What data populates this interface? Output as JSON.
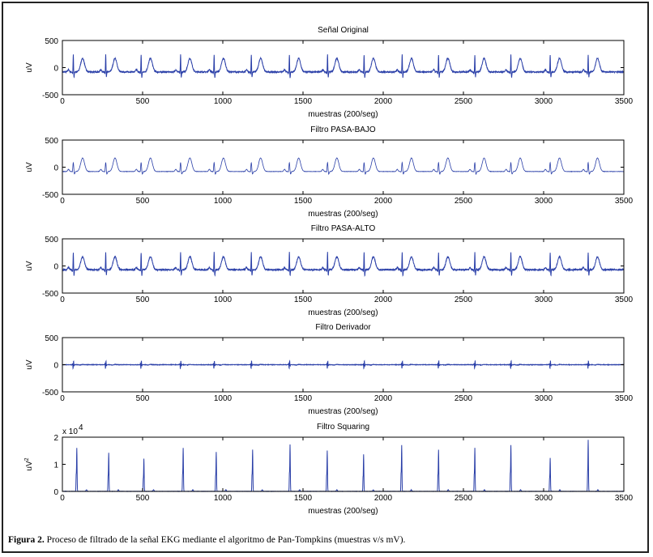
{
  "figure": {
    "caption_label": "Figura 2.",
    "caption_text": " Proceso de filtrado de la señal EKG mediante el algoritmo de Pan-Tompkins (muestras v/s mV)."
  },
  "colors": {
    "trace": "#2a3fa8",
    "axes": "#000000"
  },
  "chart_data": [
    {
      "type": "line",
      "title": "Señal Original",
      "xlabel": "muestras (200/seg)",
      "ylabel": "uV",
      "xlim": [
        0,
        3500
      ],
      "ylim": [
        -500,
        500
      ],
      "xticks": [
        0,
        500,
        1000,
        1500,
        2000,
        2500,
        3000,
        3500
      ],
      "yticks": [
        -500,
        0,
        500
      ],
      "signal": "original",
      "r_peaks": [
        68,
        270,
        491,
        737,
        946,
        1178,
        1415,
        1653,
        1881,
        2118,
        2345,
        2571,
        2796,
        3041,
        3278
      ],
      "baseline": -80,
      "r_peak_value": 250,
      "t_wave_value": 170
    },
    {
      "type": "line",
      "title": "Filtro PASA-BAJO",
      "xlabel": "muestras (200/seg)",
      "ylabel": "uV",
      "xlim": [
        0,
        3500
      ],
      "ylim": [
        -500,
        500
      ],
      "xticks": [
        0,
        500,
        1000,
        1500,
        2000,
        2500,
        3000,
        3500
      ],
      "yticks": [
        -500,
        0,
        500
      ],
      "signal": "lowpass",
      "r_peaks": [
        68,
        270,
        491,
        737,
        946,
        1178,
        1415,
        1653,
        1881,
        2118,
        2345,
        2571,
        2796,
        3041,
        3278
      ],
      "baseline": -80,
      "r_peak_value": 100,
      "t_wave_value": 170
    },
    {
      "type": "line",
      "title": "Filtro PASA-ALTO",
      "xlabel": "muestras (200/seg)",
      "ylabel": "uV",
      "xlim": [
        0,
        3500
      ],
      "ylim": [
        -500,
        500
      ],
      "xticks": [
        0,
        500,
        1000,
        1500,
        2000,
        2500,
        3000,
        3500
      ],
      "yticks": [
        -500,
        0,
        500
      ],
      "signal": "highpass",
      "r_peaks": [
        68,
        270,
        491,
        737,
        946,
        1178,
        1415,
        1653,
        1881,
        2118,
        2345,
        2571,
        2796,
        3041,
        3278
      ],
      "baseline": -70,
      "r_peak_value": 250,
      "t_wave_value": 160
    },
    {
      "type": "line",
      "title": "Filtro Derivador",
      "xlabel": "muestras (200/seg)",
      "ylabel": "uV",
      "xlim": [
        0,
        3500
      ],
      "ylim": [
        -500,
        500
      ],
      "xticks": [
        0,
        500,
        1000,
        1500,
        2000,
        2500,
        3000,
        3500
      ],
      "yticks": [
        -500,
        0,
        500
      ],
      "signal": "derivative",
      "r_peaks": [
        68,
        270,
        491,
        737,
        946,
        1178,
        1415,
        1653,
        1881,
        2118,
        2345,
        2571,
        2796,
        3041,
        3278
      ],
      "baseline": 0,
      "r_peak_value": 60,
      "t_wave_value": 10
    },
    {
      "type": "line",
      "title": "Filtro Squaring",
      "xlabel": "muestras (200/seg)",
      "ylabel": "uV",
      "ylabel_sup": "2",
      "xlim": [
        0,
        3500
      ],
      "ylim": [
        0,
        20000
      ],
      "xticks": [
        0,
        500,
        1000,
        1500,
        2000,
        2500,
        3000,
        3500
      ],
      "yticks": [
        0,
        1,
        2
      ],
      "ytick_scale": "x 10",
      "ytick_scale_exp": "4",
      "signal": "squaring",
      "r_peaks": [
        90,
        289,
        508,
        753,
        959,
        1186,
        1419,
        1651,
        1878,
        2115,
        2345,
        2571,
        2796,
        3041,
        3278
      ],
      "peak_values": [
        16000,
        14200,
        12000,
        16000,
        14500,
        15300,
        17300,
        15000,
        13600,
        17000,
        15300,
        16000,
        17000,
        12300,
        19000
      ]
    }
  ]
}
